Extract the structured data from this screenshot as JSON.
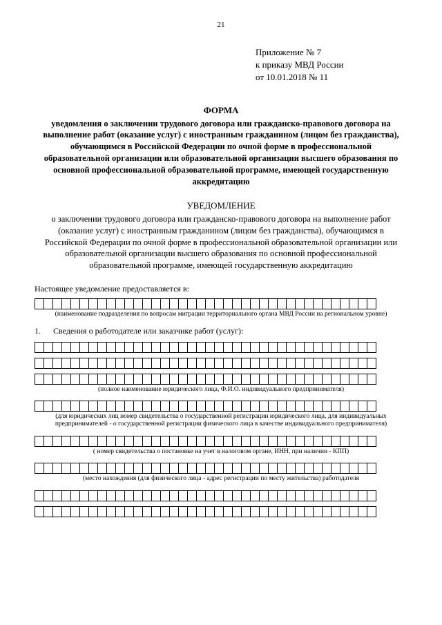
{
  "page_number": "21",
  "appendix": {
    "line1": "Приложение № 7",
    "line2": "к приказу МВД России",
    "line3": "от 10.01.2018 № 11"
  },
  "form_heading": "ФОРМА",
  "form_title": "уведомления о заключении трудового договора или гражданско-правового договора на выполнение работ (оказание услуг) с иностранным гражданином (лицом без гражданства), обучающимся в Российской Федерации по очной форме в профессиональной образовательной организации или образовательной организации высшего образования по основной профессиональной образовательной программе, имеющей государственную аккредитацию",
  "notice_heading": "УВЕДОМЛЕНИЕ",
  "notice_body": "о заключении трудового договора или гражданско-правового договора на выполнение работ (оказание услуг) с иностранным гражданином (лицом без гражданства), обучающимся в Российской Федерации по очной форме в профессиональной образовательной организации или образовательной организации высшего образования по основной профессиональной образовательной программе, имеющей государственную аккредитацию",
  "intro_line": "Настоящее уведомление предоставляется в:",
  "caption1": "(наименование подразделения по вопросам миграции территориального органа МВД России на региональном уровне)",
  "section1_num": "1.",
  "section1_text": "Сведения о работодателе или заказчике работ (услуг):",
  "caption2": "(полное наименование юридического лица, Ф.И.О. индивидуального предпринимателя)",
  "caption3": "(для юридических лиц номер свидетельства о государственной регистрации юридического лица, для индивидуальных предпринимателей - о государственной регистрации физического лица в качестве индивидуального предпринимателя)",
  "caption4": "( номер свидетельства о постановке на учет в налоговом органе, ИНН, при наличии - КПП)",
  "caption5": "(место нахождения (для физического лица - адрес регистрации по месту жительства) работодателя",
  "cells_per_row": 38
}
